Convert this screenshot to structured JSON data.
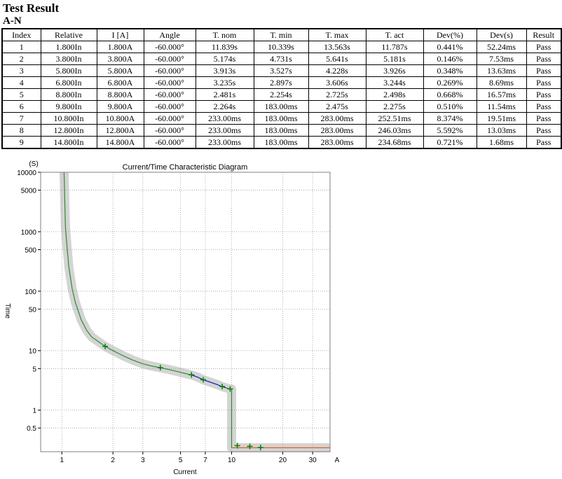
{
  "header": {
    "title": "Test Result",
    "subtitle": "A-N"
  },
  "table": {
    "columns": [
      "Index",
      "Relative",
      "I [A]",
      "Angle",
      "T. nom",
      "T. min",
      "T. max",
      "T. act",
      "Dev(%)",
      "Dev(s)",
      "Result"
    ],
    "rows": [
      [
        "1",
        "1.800In",
        "1.800A",
        "-60.000°",
        "11.839s",
        "10.339s",
        "13.563s",
        "11.787s",
        "0.441%",
        "52.24ms",
        "Pass"
      ],
      [
        "2",
        "3.800In",
        "3.800A",
        "-60.000°",
        "5.174s",
        "4.731s",
        "5.641s",
        "5.181s",
        "0.146%",
        "7.53ms",
        "Pass"
      ],
      [
        "3",
        "5.800In",
        "5.800A",
        "-60.000°",
        "3.913s",
        "3.527s",
        "4.228s",
        "3.926s",
        "0.348%",
        "13.63ms",
        "Pass"
      ],
      [
        "4",
        "6.800In",
        "6.800A",
        "-60.000°",
        "3.235s",
        "2.897s",
        "3.606s",
        "3.244s",
        "0.269%",
        "8.69ms",
        "Pass"
      ],
      [
        "5",
        "8.800In",
        "8.800A",
        "-60.000°",
        "2.481s",
        "2.254s",
        "2.725s",
        "2.498s",
        "0.668%",
        "16.57ms",
        "Pass"
      ],
      [
        "6",
        "9.800In",
        "9.800A",
        "-60.000°",
        "2.264s",
        "183.00ms",
        "2.475s",
        "2.275s",
        "0.510%",
        "11.54ms",
        "Pass"
      ],
      [
        "7",
        "10.800In",
        "10.800A",
        "-60.000°",
        "233.00ms",
        "183.00ms",
        "283.00ms",
        "252.51ms",
        "8.374%",
        "19.51ms",
        "Pass"
      ],
      [
        "8",
        "12.800In",
        "12.800A",
        "-60.000°",
        "233.00ms",
        "183.00ms",
        "283.00ms",
        "246.03ms",
        "5.592%",
        "13.03ms",
        "Pass"
      ],
      [
        "9",
        "14.800In",
        "14.800A",
        "-60.000°",
        "233.00ms",
        "183.00ms",
        "283.00ms",
        "234.68ms",
        "0.721%",
        "1.68ms",
        "Pass"
      ]
    ]
  },
  "chart_data": {
    "type": "scatter",
    "title": "Current/Time Characteristic Diagram",
    "xlabel": "Current",
    "ylabel": "Time",
    "x_unit": "A",
    "y_unit": "(S)",
    "x_scale": "log",
    "y_scale": "log",
    "xlim": [
      0.75,
      38
    ],
    "ylim": [
      0.2,
      10000
    ],
    "x_ticks": [
      1,
      2,
      3,
      5,
      7,
      10,
      20,
      30
    ],
    "x_tick_labels": [
      "1",
      "2",
      "3",
      "5",
      "7",
      "10",
      "20",
      "30"
    ],
    "y_ticks": [
      10000,
      5000,
      1000,
      500,
      100,
      50,
      10,
      5,
      1,
      0.5
    ],
    "y_tick_labels": [
      "10000",
      "5000",
      "1000",
      "500",
      "100",
      "50",
      "10",
      "5",
      "1",
      "0.5"
    ],
    "grid": true,
    "characteristic": {
      "x": [
        1.03,
        1.05,
        1.07,
        1.1,
        1.15,
        1.2,
        1.3,
        1.4,
        1.5,
        1.65,
        1.8,
        2.0,
        2.3,
        2.6,
        3.0,
        3.4,
        3.8,
        4.3,
        4.8,
        5.3,
        5.8,
        6.3,
        6.8,
        7.5,
        8.2,
        8.8,
        9.3,
        9.8,
        10.0
      ],
      "y": [
        10000,
        1200,
        600,
        250,
        110,
        65,
        33,
        22,
        17,
        14,
        11.8,
        10.0,
        8.2,
        7.0,
        6.0,
        5.5,
        5.17,
        4.8,
        4.45,
        4.15,
        3.91,
        3.6,
        3.24,
        2.95,
        2.7,
        2.48,
        2.37,
        2.26,
        2.26
      ],
      "high_current_x": [
        10.0,
        10.0,
        38
      ],
      "high_current_y": [
        2.26,
        0.233,
        0.233
      ],
      "colors": {
        "curve": "#2e8b2e",
        "highlight": "#2222cc",
        "definite_time": "#e06020",
        "tolerance_band": "#d4d4d4"
      }
    },
    "points": {
      "x": [
        1.8,
        3.8,
        5.8,
        6.8,
        8.8,
        9.8,
        10.8,
        12.8,
        14.8
      ],
      "y": [
        11.787,
        5.181,
        3.926,
        3.244,
        2.498,
        2.275,
        0.25251,
        0.24603,
        0.23468
      ],
      "color": "#008000"
    }
  }
}
